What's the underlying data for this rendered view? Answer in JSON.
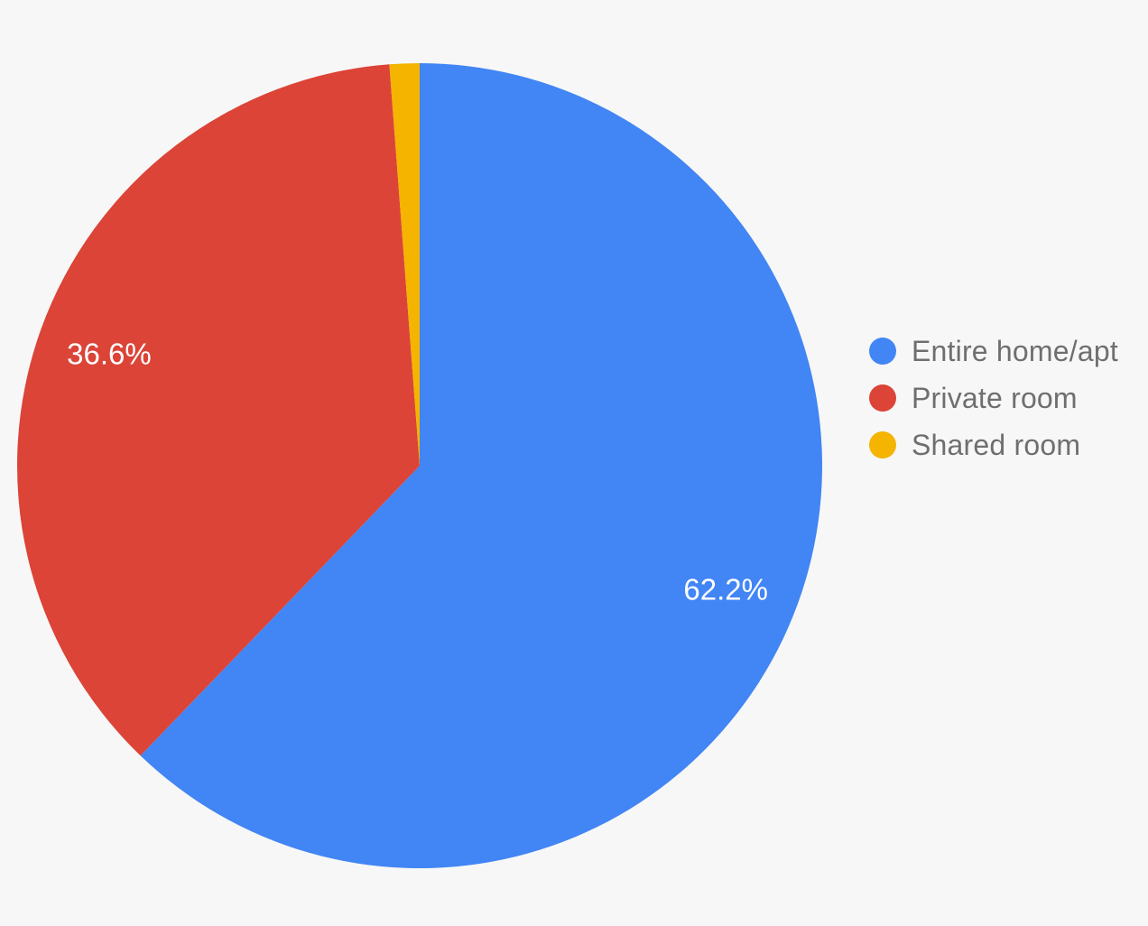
{
  "chart_data": {
    "type": "pie",
    "title": "",
    "legend_position": "right",
    "start_angle_deg": 0,
    "direction": "clockwise",
    "segments": [
      {
        "label": "Entire home/apt",
        "value": 62.2,
        "pct_label": "62.2%",
        "color": "#4285F4"
      },
      {
        "label": "Private room",
        "value": 36.6,
        "pct_label": "36.6%",
        "color": "#DB4437"
      },
      {
        "label": "Shared room",
        "value": 1.2,
        "pct_label": "",
        "color": "#F4B400"
      }
    ],
    "slice_label_color": "#FFFFFF",
    "background_color": "#F7F7F7",
    "legend_text_color": "#6F6F6F"
  }
}
